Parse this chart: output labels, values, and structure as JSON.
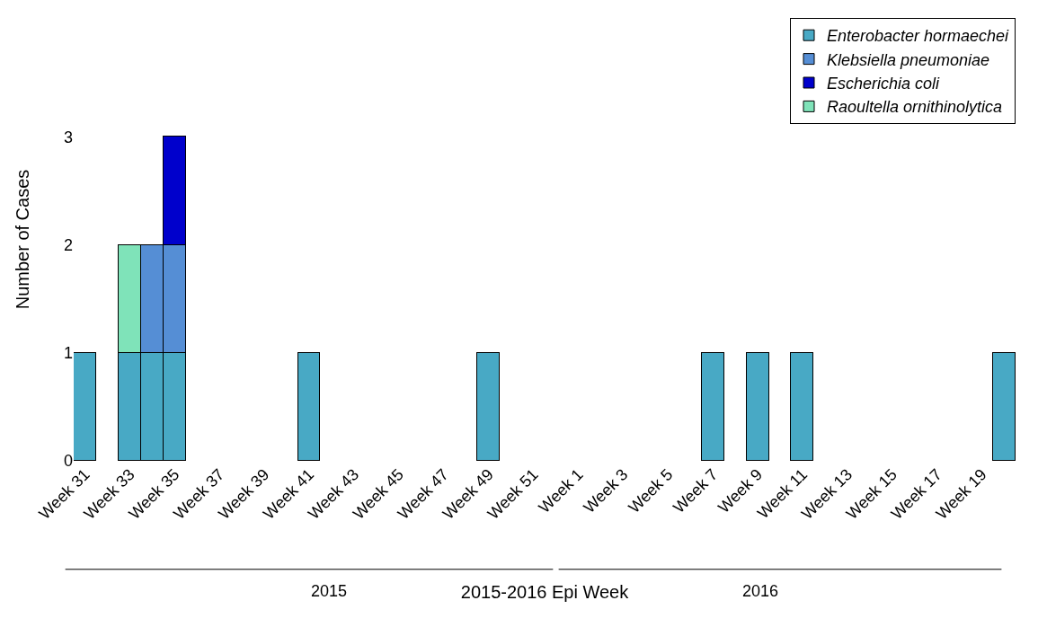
{
  "chart_data": {
    "type": "bar",
    "stacked": true,
    "xlabel": "2015-2016 Epi Week",
    "ylabel": "Number of Cases",
    "categories": [
      "Week 31",
      null,
      "Week 33",
      null,
      "Week 35",
      null,
      "Week 37",
      null,
      "Week 39",
      null,
      "Week 41",
      null,
      "Week 43",
      null,
      "Week 45",
      null,
      "Week 47",
      null,
      "Week 49",
      null,
      "Week 51",
      null,
      "Week 1",
      null,
      "Week 3",
      null,
      "Week 5",
      null,
      "Week 7",
      null,
      "Week 9",
      null,
      "Week 11",
      null,
      "Week 13",
      null,
      "Week 15",
      null,
      "Week 17",
      null,
      "Week 19",
      null
    ],
    "series": [
      {
        "name": "Enterobacter hormaechei",
        "color": "#48a9c5",
        "values": [
          1,
          null,
          1,
          1,
          1,
          null,
          null,
          null,
          null,
          null,
          1,
          null,
          null,
          null,
          null,
          null,
          null,
          null,
          1,
          null,
          null,
          null,
          null,
          null,
          null,
          null,
          null,
          null,
          1,
          null,
          1,
          null,
          1,
          null,
          null,
          null,
          null,
          null,
          null,
          null,
          null,
          1
        ]
      },
      {
        "name": "Klebsiella pneumoniae",
        "color": "#558ed5",
        "values": [
          null,
          null,
          null,
          1,
          1,
          null,
          null,
          null,
          null,
          null,
          null,
          null,
          null,
          null,
          null,
          null,
          null,
          null,
          null,
          null,
          null,
          null,
          null,
          null,
          null,
          null,
          null,
          null,
          null,
          null,
          null,
          null,
          null,
          null,
          null,
          null,
          null,
          null,
          null,
          null,
          null,
          null
        ]
      },
      {
        "name": "Escherichia coli",
        "color": "#0000cc",
        "values": [
          null,
          null,
          null,
          null,
          1,
          null,
          null,
          null,
          null,
          null,
          null,
          null,
          null,
          null,
          null,
          null,
          null,
          null,
          null,
          null,
          null,
          null,
          null,
          null,
          null,
          null,
          null,
          null,
          null,
          null,
          null,
          null,
          null,
          null,
          null,
          null,
          null,
          null,
          null,
          null,
          null,
          null
        ]
      },
      {
        "name": "Raoultella ornithinolytica",
        "color": "#7fe3b9",
        "values": [
          null,
          null,
          1,
          null,
          null,
          null,
          null,
          null,
          null,
          null,
          null,
          null,
          null,
          null,
          null,
          null,
          null,
          null,
          null,
          null,
          null,
          null,
          null,
          null,
          null,
          null,
          null,
          null,
          null,
          null,
          null,
          null,
          null,
          null,
          null,
          null,
          null,
          null,
          null,
          null,
          null,
          null
        ]
      }
    ],
    "ylim": [
      0,
      4.1
    ],
    "yticks": [
      0,
      1,
      2,
      3
    ],
    "grid": false,
    "legend": "top right",
    "annotations": [
      "2015",
      "2016"
    ]
  }
}
